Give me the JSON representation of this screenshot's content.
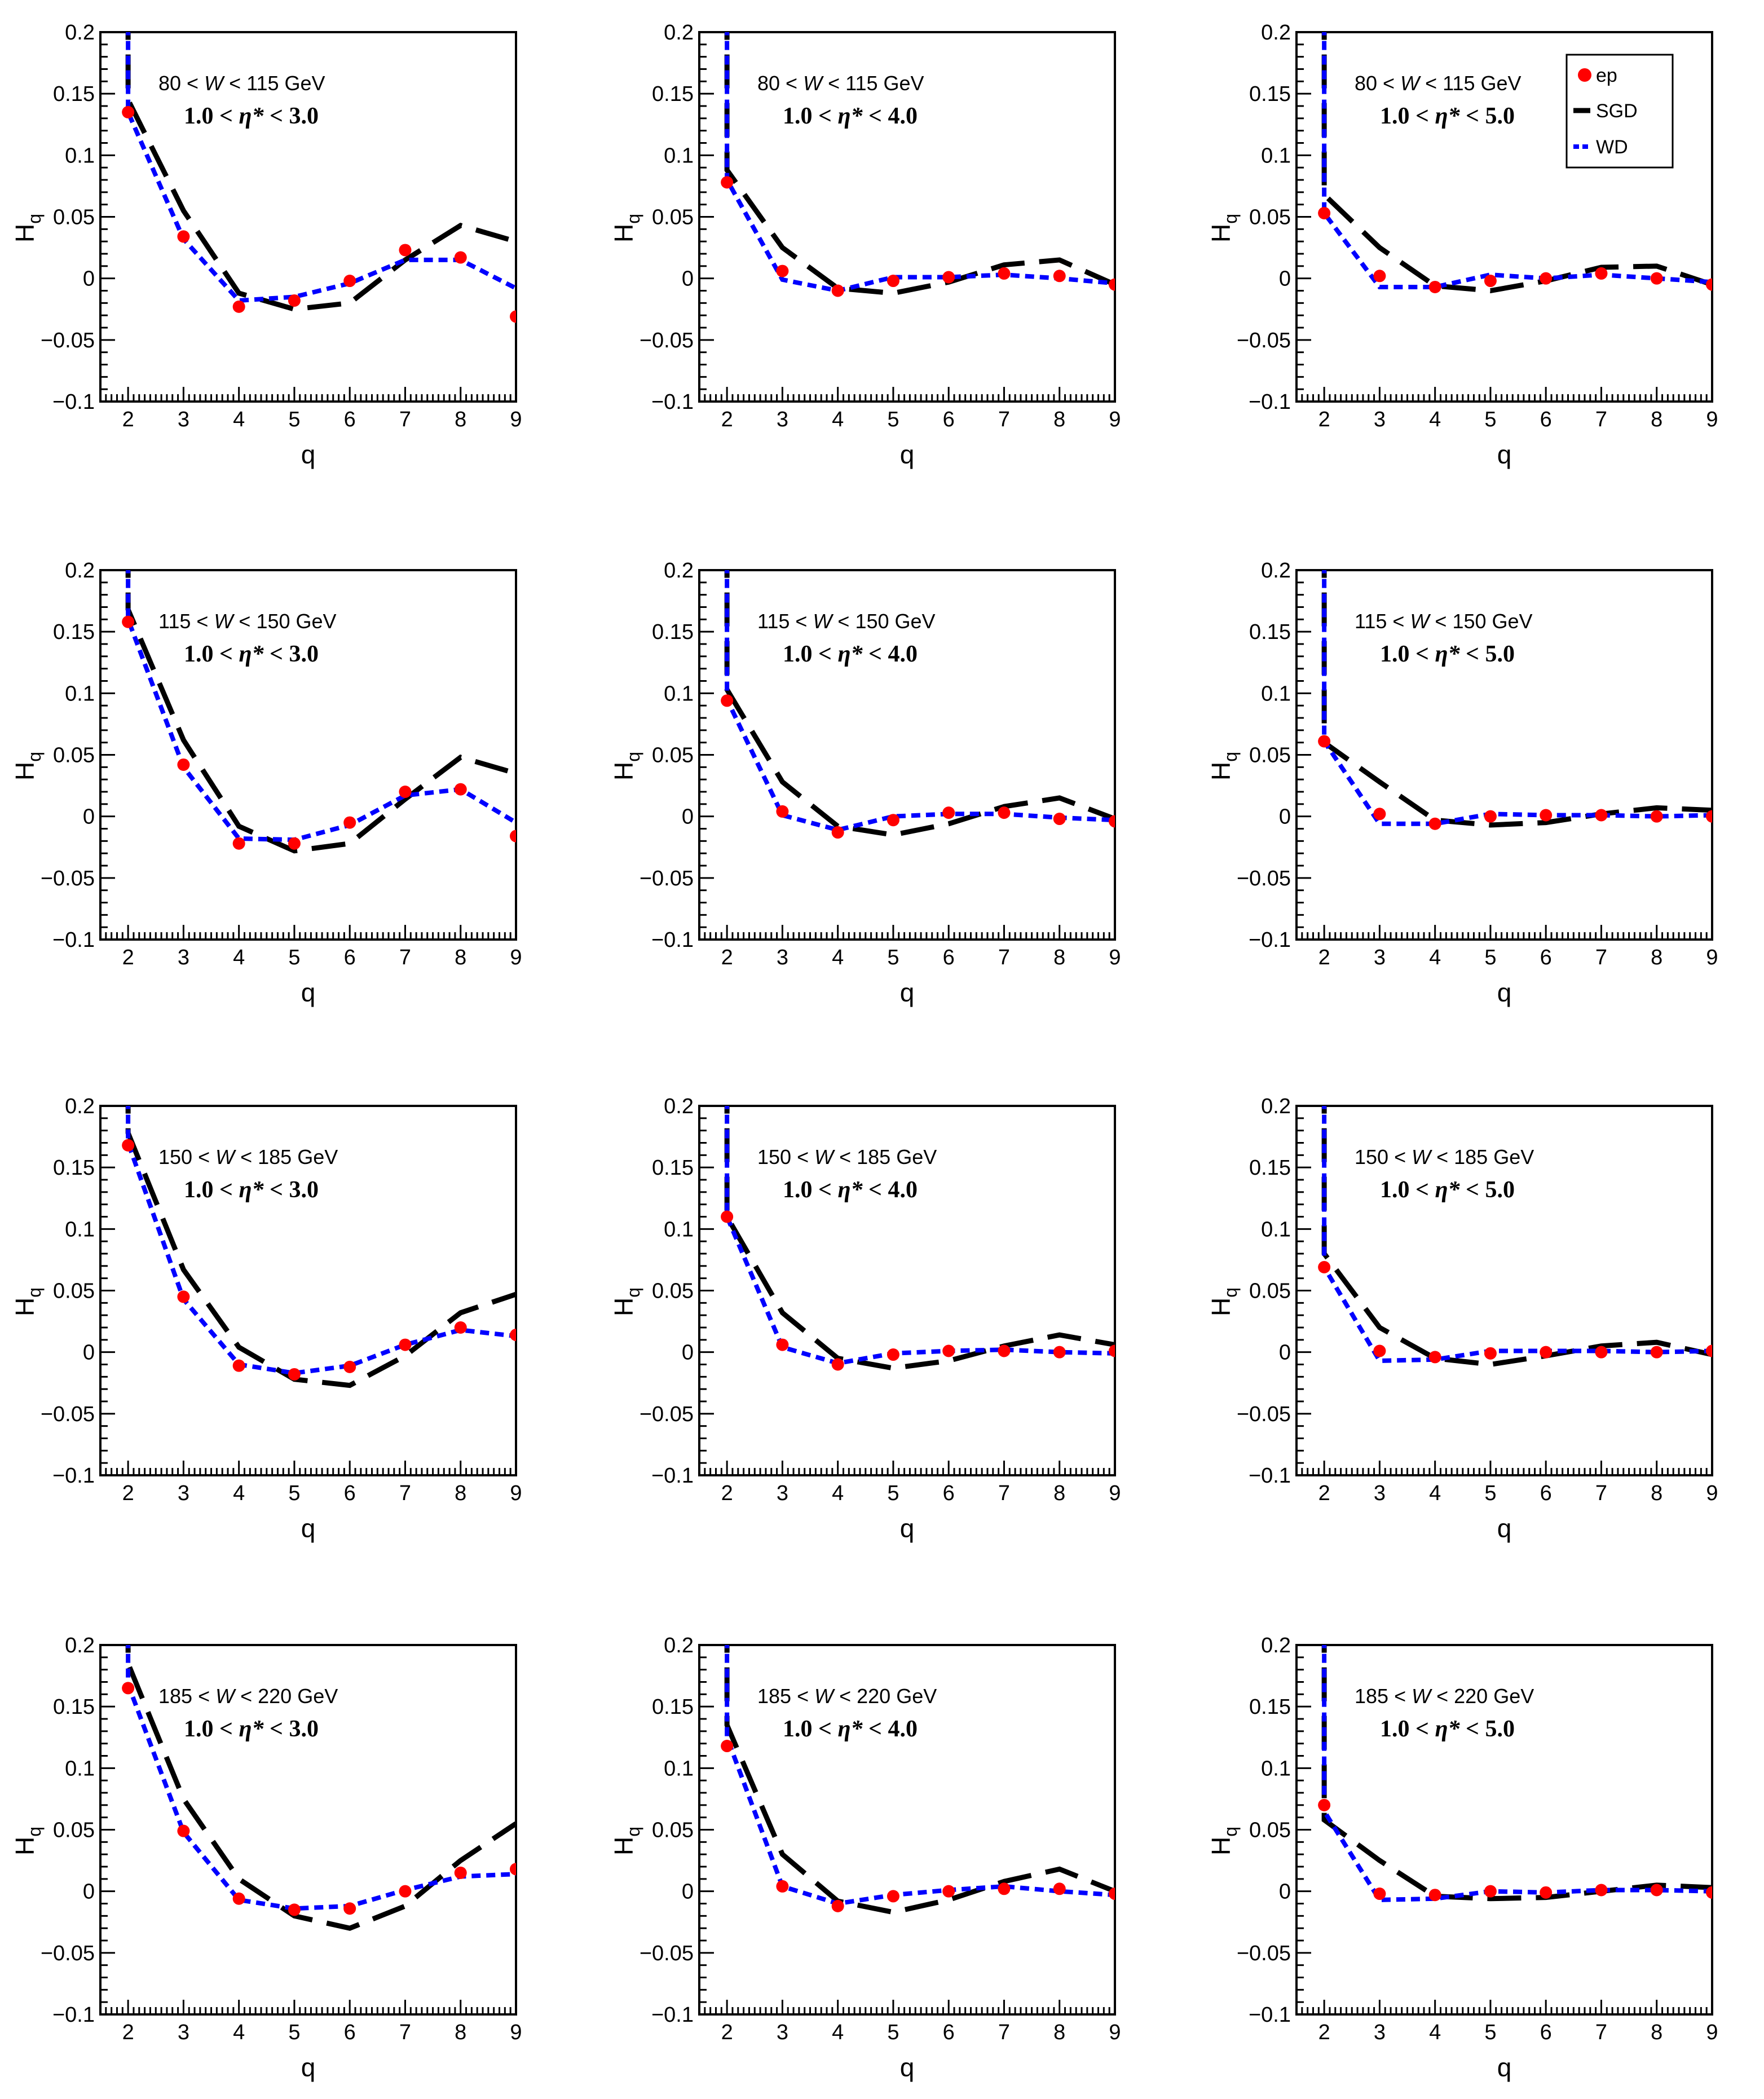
{
  "figure": {
    "x_title": "q",
    "y_title": "H",
    "y_title_sub": "q",
    "x_ticks": [
      "2",
      "3",
      "4",
      "5",
      "6",
      "7",
      "8",
      "9"
    ],
    "y_ticks": [
      "0.2",
      "0.15",
      "0.1",
      "0.05",
      "0",
      "−0.05",
      "−0.1"
    ],
    "legend": [
      {
        "label": "ep",
        "color": "#ff0000"
      },
      {
        "label": "SGD",
        "color": "#000000"
      },
      {
        "label": "WD",
        "color": "#0000ff"
      }
    ]
  },
  "chart_data": [
    {
      "type": "line",
      "row": 1,
      "col": 1,
      "w_range": "80 < W < 115 GeV",
      "w_lo": "80",
      "w_hi": "115",
      "eta_lo": "1.0",
      "eta_hi": "3.0",
      "xlim": [
        1.5,
        9
      ],
      "ylim": [
        -0.1,
        0.2
      ],
      "x": [
        2,
        3,
        4,
        5,
        6,
        7,
        8,
        9
      ],
      "series": [
        {
          "name": "ep",
          "values": [
            0.135,
            0.034,
            -0.023,
            -0.018,
            -0.002,
            0.023,
            0.017,
            -0.031
          ]
        },
        {
          "name": "SGD",
          "values": [
            0.145,
            0.055,
            -0.012,
            -0.025,
            -0.02,
            0.015,
            0.043,
            0.03
          ]
        },
        {
          "name": "WD",
          "values": [
            0.135,
            0.032,
            -0.018,
            -0.015,
            -0.004,
            0.015,
            0.015,
            -0.008
          ]
        }
      ]
    },
    {
      "type": "line",
      "row": 1,
      "col": 2,
      "w_range": "80 < W < 115 GeV",
      "w_lo": "80",
      "w_hi": "115",
      "eta_lo": "1.0",
      "eta_hi": "4.0",
      "xlim": [
        1.5,
        9
      ],
      "ylim": [
        -0.1,
        0.2
      ],
      "x": [
        2,
        3,
        4,
        5,
        6,
        7,
        8,
        9
      ],
      "series": [
        {
          "name": "ep",
          "values": [
            0.078,
            0.006,
            -0.01,
            -0.002,
            0.001,
            0.004,
            0.002,
            -0.005
          ]
        },
        {
          "name": "SGD",
          "values": [
            0.088,
            0.025,
            -0.008,
            -0.012,
            -0.003,
            0.011,
            0.015,
            -0.005
          ]
        },
        {
          "name": "WD",
          "values": [
            0.08,
            -0.001,
            -0.01,
            0.001,
            0.001,
            0.003,
            0.0,
            -0.004
          ]
        }
      ]
    },
    {
      "type": "line",
      "row": 1,
      "col": 3,
      "w_range": "80 < W < 115 GeV",
      "w_lo": "80",
      "w_hi": "115",
      "eta_lo": "1.0",
      "eta_hi": "5.0",
      "xlim": [
        1.5,
        9
      ],
      "ylim": [
        -0.1,
        0.2
      ],
      "x": [
        2,
        3,
        4,
        5,
        6,
        7,
        8,
        9
      ],
      "series": [
        {
          "name": "ep",
          "values": [
            0.053,
            0.002,
            -0.007,
            -0.002,
            0.0,
            0.004,
            0.0,
            -0.005
          ]
        },
        {
          "name": "SGD",
          "values": [
            0.068,
            0.025,
            -0.006,
            -0.01,
            -0.002,
            0.009,
            0.01,
            -0.005
          ]
        },
        {
          "name": "WD",
          "values": [
            0.053,
            -0.007,
            -0.007,
            0.003,
            0.0,
            0.003,
            0.0,
            -0.003
          ]
        }
      ]
    },
    {
      "type": "line",
      "row": 2,
      "col": 1,
      "w_range": "115 < W < 150 GeV",
      "w_lo": "115",
      "w_hi": "150",
      "eta_lo": "1.0",
      "eta_hi": "3.0",
      "xlim": [
        1.5,
        9
      ],
      "ylim": [
        -0.1,
        0.2
      ],
      "x": [
        2,
        3,
        4,
        5,
        6,
        7,
        8,
        9
      ],
      "series": [
        {
          "name": "ep",
          "values": [
            0.158,
            0.042,
            -0.022,
            -0.022,
            -0.005,
            0.02,
            0.022,
            -0.016
          ]
        },
        {
          "name": "SGD",
          "values": [
            0.168,
            0.062,
            -0.008,
            -0.028,
            -0.022,
            0.014,
            0.048,
            0.035
          ]
        },
        {
          "name": "WD",
          "values": [
            0.16,
            0.04,
            -0.018,
            -0.019,
            -0.007,
            0.017,
            0.022,
            -0.005
          ]
        }
      ]
    },
    {
      "type": "line",
      "row": 2,
      "col": 2,
      "w_range": "115 < W < 150 GeV",
      "w_lo": "115",
      "w_hi": "150",
      "eta_lo": "1.0",
      "eta_hi": "4.0",
      "xlim": [
        1.5,
        9
      ],
      "ylim": [
        -0.1,
        0.2
      ],
      "x": [
        2,
        3,
        4,
        5,
        6,
        7,
        8,
        9
      ],
      "series": [
        {
          "name": "ep",
          "values": [
            0.094,
            0.004,
            -0.013,
            -0.003,
            0.003,
            0.003,
            -0.002,
            -0.004
          ]
        },
        {
          "name": "SGD",
          "values": [
            0.103,
            0.028,
            -0.008,
            -0.015,
            -0.006,
            0.008,
            0.015,
            -0.002
          ]
        },
        {
          "name": "WD",
          "values": [
            0.095,
            0.001,
            -0.011,
            0.0,
            0.002,
            0.002,
            -0.001,
            -0.003
          ]
        }
      ]
    },
    {
      "type": "line",
      "row": 2,
      "col": 3,
      "w_range": "115 < W < 150 GeV",
      "w_lo": "115",
      "w_hi": "150",
      "eta_lo": "1.0",
      "eta_hi": "5.0",
      "xlim": [
        1.5,
        9
      ],
      "ylim": [
        -0.1,
        0.2
      ],
      "x": [
        2,
        3,
        4,
        5,
        6,
        7,
        8,
        9
      ],
      "series": [
        {
          "name": "ep",
          "values": [
            0.061,
            0.002,
            -0.006,
            0.0,
            0.001,
            0.001,
            0.0,
            0.0
          ]
        },
        {
          "name": "SGD",
          "values": [
            0.06,
            0.028,
            -0.003,
            -0.007,
            -0.005,
            0.002,
            0.007,
            0.005
          ]
        },
        {
          "name": "WD",
          "values": [
            0.061,
            -0.006,
            -0.006,
            0.002,
            0.001,
            0.001,
            0.0,
            0.001
          ]
        }
      ]
    },
    {
      "type": "line",
      "row": 3,
      "col": 1,
      "w_range": "150 < W < 185 GeV",
      "w_lo": "150",
      "w_hi": "185",
      "eta_lo": "1.0",
      "eta_hi": "3.0",
      "xlim": [
        1.5,
        9
      ],
      "ylim": [
        -0.1,
        0.2
      ],
      "x": [
        2,
        3,
        4,
        5,
        6,
        7,
        8,
        9
      ],
      "series": [
        {
          "name": "ep",
          "values": [
            0.168,
            0.045,
            -0.011,
            -0.018,
            -0.012,
            0.006,
            0.02,
            0.014
          ]
        },
        {
          "name": "SGD",
          "values": [
            0.178,
            0.067,
            0.004,
            -0.022,
            -0.027,
            -0.003,
            0.032,
            0.047
          ]
        },
        {
          "name": "WD",
          "values": [
            0.17,
            0.043,
            -0.01,
            -0.017,
            -0.011,
            0.006,
            0.018,
            0.013
          ]
        }
      ]
    },
    {
      "type": "line",
      "row": 3,
      "col": 2,
      "w_range": "150 < W < 185 GeV",
      "w_lo": "150",
      "w_hi": "185",
      "eta_lo": "1.0",
      "eta_hi": "4.0",
      "xlim": [
        1.5,
        9
      ],
      "ylim": [
        -0.1,
        0.2
      ],
      "x": [
        2,
        3,
        4,
        5,
        6,
        7,
        8,
        9
      ],
      "series": [
        {
          "name": "ep",
          "values": [
            0.11,
            0.006,
            -0.01,
            -0.002,
            0.001,
            0.001,
            0.0,
            0.001
          ]
        },
        {
          "name": "SGD",
          "values": [
            0.11,
            0.032,
            -0.005,
            -0.013,
            -0.007,
            0.005,
            0.014,
            0.006
          ]
        },
        {
          "name": "WD",
          "values": [
            0.11,
            0.004,
            -0.009,
            -0.001,
            0.001,
            0.002,
            0.0,
            -0.001
          ]
        }
      ]
    },
    {
      "type": "line",
      "row": 3,
      "col": 3,
      "w_range": "150 < W < 185 GeV",
      "w_lo": "150",
      "w_hi": "185",
      "eta_lo": "1.0",
      "eta_hi": "5.0",
      "xlim": [
        1.5,
        9
      ],
      "ylim": [
        -0.1,
        0.2
      ],
      "x": [
        2,
        3,
        4,
        5,
        6,
        7,
        8,
        9
      ],
      "series": [
        {
          "name": "ep",
          "values": [
            0.069,
            0.001,
            -0.004,
            -0.001,
            0.0,
            0.0,
            0.0,
            0.001
          ]
        },
        {
          "name": "SGD",
          "values": [
            0.08,
            0.02,
            -0.005,
            -0.01,
            -0.003,
            0.005,
            0.008,
            -0.002
          ]
        },
        {
          "name": "WD",
          "values": [
            0.069,
            -0.007,
            -0.006,
            0.001,
            0.001,
            0.001,
            0.0,
            0.001
          ]
        }
      ]
    },
    {
      "type": "line",
      "row": 4,
      "col": 1,
      "w_range": "185 < W < 220 GeV",
      "w_lo": "185",
      "w_hi": "220",
      "eta_lo": "1.0",
      "eta_hi": "3.0",
      "xlim": [
        1.5,
        9
      ],
      "ylim": [
        -0.1,
        0.2
      ],
      "x": [
        2,
        3,
        4,
        5,
        6,
        7,
        8,
        9
      ],
      "series": [
        {
          "name": "ep",
          "values": [
            0.165,
            0.049,
            -0.006,
            -0.015,
            -0.014,
            0.0,
            0.015,
            0.018
          ]
        },
        {
          "name": "SGD",
          "values": [
            0.185,
            0.075,
            0.01,
            -0.02,
            -0.03,
            -0.012,
            0.025,
            0.055
          ]
        },
        {
          "name": "WD",
          "values": [
            0.168,
            0.048,
            -0.007,
            -0.014,
            -0.012,
            0.001,
            0.012,
            0.014
          ]
        }
      ]
    },
    {
      "type": "line",
      "row": 4,
      "col": 2,
      "w_range": "185 < W < 220 GeV",
      "w_lo": "185",
      "w_hi": "220",
      "eta_lo": "1.0",
      "eta_hi": "4.0",
      "xlim": [
        1.5,
        9
      ],
      "ylim": [
        -0.1,
        0.2
      ],
      "x": [
        2,
        3,
        4,
        5,
        6,
        7,
        8,
        9
      ],
      "series": [
        {
          "name": "ep",
          "values": [
            0.118,
            0.004,
            -0.012,
            -0.004,
            0.0,
            0.002,
            0.002,
            -0.002
          ]
        },
        {
          "name": "SGD",
          "values": [
            0.135,
            0.03,
            -0.008,
            -0.017,
            -0.007,
            0.008,
            0.018,
            0.0
          ]
        },
        {
          "name": "WD",
          "values": [
            0.125,
            0.004,
            -0.01,
            -0.003,
            0.001,
            0.004,
            0.0,
            -0.003
          ]
        }
      ]
    },
    {
      "type": "line",
      "row": 4,
      "col": 3,
      "w_range": "185 < W < 220 GeV",
      "w_lo": "185",
      "w_hi": "220",
      "eta_lo": "1.0",
      "eta_hi": "5.0",
      "xlim": [
        1.5,
        9
      ],
      "ylim": [
        -0.1,
        0.2
      ],
      "x": [
        2,
        3,
        4,
        5,
        6,
        7,
        8,
        9
      ],
      "series": [
        {
          "name": "ep",
          "values": [
            0.07,
            -0.002,
            -0.003,
            0.0,
            -0.001,
            0.001,
            0.001,
            -0.001
          ]
        },
        {
          "name": "SGD",
          "values": [
            0.058,
            0.025,
            -0.004,
            -0.006,
            -0.005,
            0.0,
            0.005,
            0.003
          ]
        },
        {
          "name": "WD",
          "values": [
            0.065,
            -0.007,
            -0.006,
            0.0,
            -0.001,
            0.001,
            0.001,
            0.0
          ]
        }
      ]
    }
  ]
}
